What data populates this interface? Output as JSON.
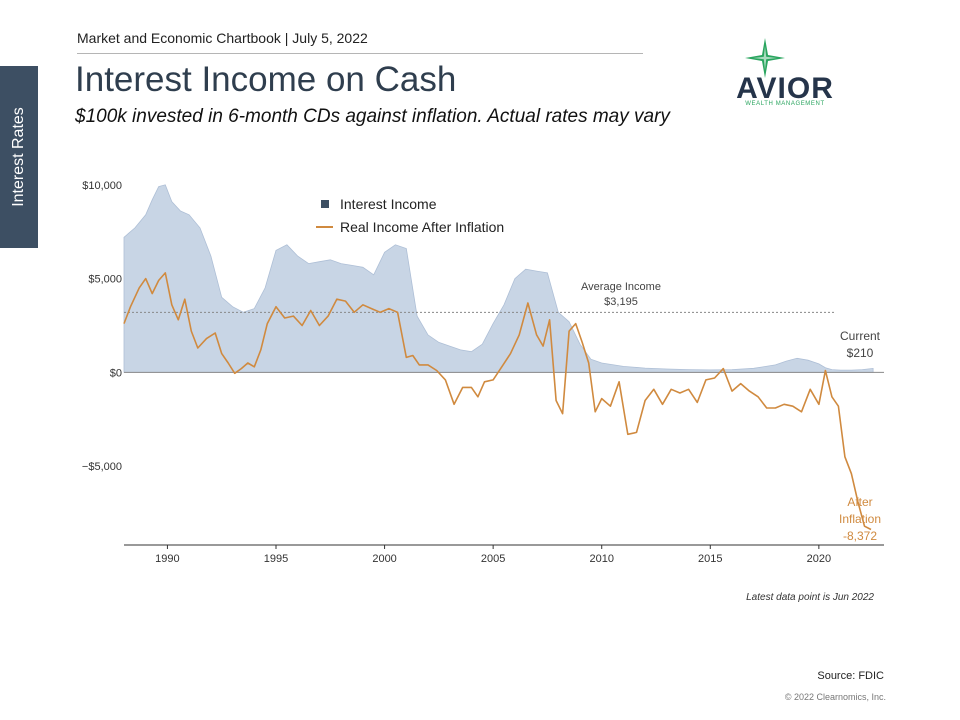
{
  "sidebar": {
    "tab_label": "Interest Rates"
  },
  "header": {
    "chartbook_line": "Market and Economic Chartbook | July 5, 2022",
    "title": "Interest Income on Cash",
    "subtitle": "$100k invested in 6-month CDs against inflation. Actual rates may vary"
  },
  "logo": {
    "word": "AVIOR",
    "tagline": "WEALTH MANAGEMENT",
    "star_color": "#2aa55f",
    "word_color": "#25344a"
  },
  "colors": {
    "income_fill": "#c8d5e5",
    "income_stroke": "#aebfd6",
    "real_line": "#d08a3f",
    "legend_square": "#3d4f63",
    "zero_line": "#8a8a8a",
    "avg_line": "#888888"
  },
  "chart_data": {
    "type": "area",
    "xlim": [
      1988,
      2023
    ],
    "ylim": [
      -9200,
      10200
    ],
    "yticks": [
      10000,
      5000,
      0,
      -5000
    ],
    "ytick_labels": [
      "$10,000",
      "$5,000",
      "$0",
      "−$5,000"
    ],
    "xticks": [
      1990,
      1995,
      2000,
      2005,
      2010,
      2015,
      2020
    ],
    "xtick_labels": [
      "1990",
      "1995",
      "2000",
      "2005",
      "2010",
      "2015",
      "2020"
    ],
    "legend": [
      "Interest Income",
      "Real Income After Inflation"
    ],
    "legend_position": "top-center",
    "series": [
      {
        "name": "Interest Income",
        "x": [
          1988.0,
          1988.5,
          1989.0,
          1989.3,
          1989.6,
          1989.9,
          1990.2,
          1990.6,
          1991.0,
          1991.5,
          1992.0,
          1992.5,
          1993.0,
          1993.5,
          1994.0,
          1994.5,
          1995.0,
          1995.5,
          1996.0,
          1996.5,
          1997.0,
          1997.5,
          1998.0,
          1998.5,
          1999.0,
          1999.5,
          2000.0,
          2000.5,
          2001.0,
          2001.5,
          2002.0,
          2002.5,
          2003.0,
          2003.5,
          2004.0,
          2004.5,
          2005.0,
          2005.5,
          2006.0,
          2006.5,
          2007.0,
          2007.5,
          2008.0,
          2008.5,
          2009.0,
          2009.5,
          2010.0,
          2011.0,
          2012.0,
          2013.0,
          2014.0,
          2015.0,
          2016.0,
          2017.0,
          2018.0,
          2018.5,
          2019.0,
          2019.5,
          2020.0,
          2020.3,
          2020.6,
          2021.0,
          2021.5,
          2022.0,
          2022.5
        ],
        "values": [
          7200,
          7700,
          8400,
          9200,
          9900,
          10000,
          9100,
          8600,
          8400,
          7700,
          6200,
          4000,
          3500,
          3200,
          3400,
          4500,
          6500,
          6800,
          6200,
          5800,
          5900,
          6000,
          5800,
          5700,
          5600,
          5200,
          6400,
          6800,
          6600,
          3000,
          2000,
          1600,
          1400,
          1200,
          1100,
          1500,
          2600,
          3600,
          5000,
          5500,
          5400,
          5300,
          3200,
          2700,
          1500,
          700,
          500,
          320,
          230,
          180,
          150,
          130,
          150,
          220,
          400,
          600,
          750,
          650,
          450,
          250,
          150,
          120,
          120,
          150,
          210
        ]
      },
      {
        "name": "Real Income After Inflation",
        "x": [
          1988.0,
          1988.3,
          1988.7,
          1989.0,
          1989.3,
          1989.6,
          1989.9,
          1990.2,
          1990.5,
          1990.8,
          1991.1,
          1991.4,
          1991.8,
          1992.2,
          1992.5,
          1992.8,
          1993.1,
          1993.4,
          1993.7,
          1994.0,
          1994.3,
          1994.6,
          1995.0,
          1995.4,
          1995.8,
          1996.2,
          1996.6,
          1997.0,
          1997.4,
          1997.8,
          1998.2,
          1998.6,
          1999.0,
          1999.4,
          1999.8,
          2000.2,
          2000.6,
          2001.0,
          2001.3,
          2001.6,
          2002.0,
          2002.4,
          2002.8,
          2003.2,
          2003.6,
          2004.0,
          2004.3,
          2004.6,
          2005.0,
          2005.4,
          2005.8,
          2006.2,
          2006.6,
          2007.0,
          2007.3,
          2007.6,
          2007.9,
          2008.2,
          2008.5,
          2008.8,
          2009.1,
          2009.4,
          2009.7,
          2010.0,
          2010.4,
          2010.8,
          2011.2,
          2011.6,
          2012.0,
          2012.4,
          2012.8,
          2013.2,
          2013.6,
          2014.0,
          2014.4,
          2014.8,
          2015.2,
          2015.6,
          2016.0,
          2016.4,
          2016.8,
          2017.2,
          2017.6,
          2018.0,
          2018.4,
          2018.8,
          2019.2,
          2019.6,
          2020.0,
          2020.3,
          2020.6,
          2020.9,
          2021.2,
          2021.5,
          2021.8,
          2022.1,
          2022.4
        ],
        "values": [
          2600,
          3500,
          4500,
          5000,
          4200,
          4900,
          5300,
          3600,
          2800,
          3900,
          2200,
          1300,
          1800,
          2100,
          1000,
          500,
          -50,
          200,
          500,
          300,
          1200,
          2600,
          3500,
          2900,
          3000,
          2500,
          3300,
          2500,
          3000,
          3900,
          3800,
          3200,
          3600,
          3400,
          3200,
          3400,
          3200,
          800,
          900,
          400,
          400,
          100,
          -400,
          -1700,
          -800,
          -800,
          -1300,
          -500,
          -400,
          300,
          1000,
          2000,
          3700,
          2000,
          1400,
          2800,
          -1500,
          -2200,
          2200,
          2600,
          1600,
          500,
          -2100,
          -1400,
          -1800,
          -500,
          -3300,
          -3200,
          -1500,
          -900,
          -1700,
          -900,
          -1100,
          -900,
          -1600,
          -400,
          -300,
          200,
          -1000,
          -600,
          -1000,
          -1300,
          -1900,
          -1900,
          -1700,
          -1800,
          -2100,
          -900,
          -1700,
          100,
          -1300,
          -1800,
          -4500,
          -5400,
          -6900,
          -8200,
          -8372
        ]
      }
    ],
    "annotations": {
      "average_label": "Average Income",
      "average_value_label": "$3,195",
      "average_value": 3195,
      "current_label": "Current",
      "current_value_label": "$210",
      "after_label_1": "After",
      "after_label_2": "Inflation",
      "after_value_label": "-8,372"
    }
  },
  "footer": {
    "latest_note": "Latest data point is Jun 2022",
    "source": "Source: FDIC",
    "copyright": "© 2022 Clearnomics, Inc."
  }
}
